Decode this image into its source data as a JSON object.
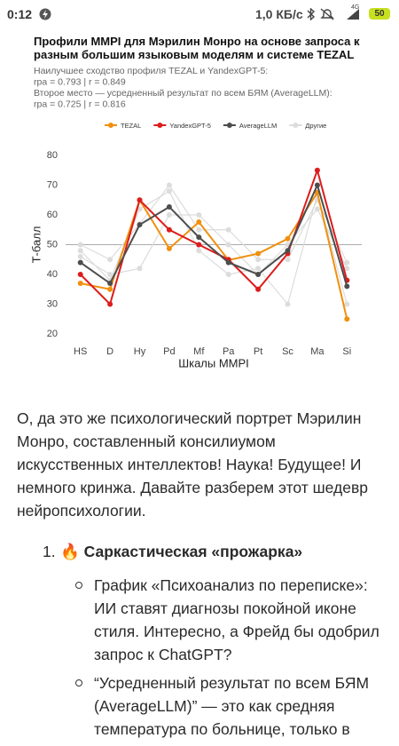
{
  "status_bar": {
    "time": "0:12",
    "speed": "1,0 КБ/с",
    "network": "4G",
    "battery": "50"
  },
  "chart_data": {
    "type": "line",
    "title": "Профили MMPI для Мэрилин Монро на основе запроса к разным большим языковым моделям и системе TEZAL",
    "subtitle": [
      "Наилучшее сходство профиля TEZAL и YandexGPT-5:",
      "rpa = 0.793 | r = 0.849",
      "Второе место — усредненный результат по всем БЯМ (AverageLLM):",
      "rpa = 0.725 | r = 0.816"
    ],
    "x_label": "Шкалы MMPI",
    "y_label": "Т-балл",
    "categories": [
      "HS",
      "D",
      "Hy",
      "Pd",
      "Mf",
      "Pa",
      "Pt",
      "Sc",
      "Ma",
      "Si"
    ],
    "ylim": [
      17,
      83
    ],
    "yticks": [
      20,
      30,
      40,
      50,
      60,
      70,
      80
    ],
    "grid": false,
    "reference_line": 50,
    "legend": "top",
    "series": [
      {
        "name": "TEZAL",
        "color": "#f0900f",
        "values": [
          37,
          35,
          65,
          48.7,
          57.6,
          44.8,
          47,
          52,
          67.5,
          25
        ]
      },
      {
        "name": "YandexGPT-5",
        "color": "#dd1c1c",
        "values": [
          40,
          30,
          65,
          55,
          50,
          45,
          35,
          47,
          75,
          38
        ]
      },
      {
        "name": "AverageLLM",
        "color": "#4d4d4d",
        "values": [
          44,
          37,
          56.7,
          62.7,
          52.5,
          44,
          40,
          48,
          70,
          36
        ]
      },
      {
        "name": "Другие",
        "color": "#dcdcdc",
        "values": [
          [
            50,
            45,
            57,
            70,
            55,
            55,
            45,
            45,
            65,
            44
          ],
          [
            48,
            38,
            62,
            68,
            48,
            40,
            42,
            30,
            67,
            30
          ],
          [
            46,
            40,
            42,
            60,
            60,
            50,
            40,
            50,
            62,
            42
          ]
        ]
      }
    ]
  },
  "article": {
    "intro": "О, да это же психологический портрет Мэрилин Монро, составленный консилиумом искусственных интеллектов! Наука! Будущее! И немного кринжа. Давайте разберем этот шедевр нейропсихологии.",
    "list": [
      {
        "marker": "1.",
        "title": "🔥 Саркастическая «прожарка»",
        "items": [
          "График «Психоанализ по переписке»: ИИ ставят диагнозы покойной иконе стиля. Интересно, а Фрейд бы одобрил запрос к ChatGPT?",
          "“Усредненный результат по всем БЯМ (AverageLLM)” — это как средняя температура по больнице, только в"
        ]
      }
    ]
  }
}
